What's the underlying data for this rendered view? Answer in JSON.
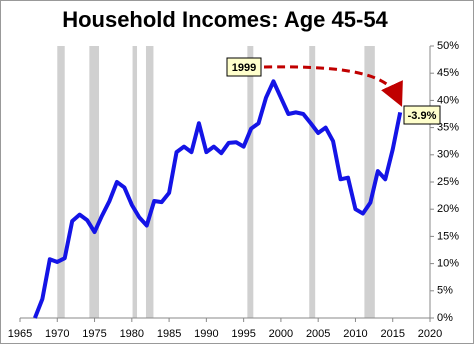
{
  "chart_data": {
    "type": "line",
    "title": "Household Incomes: Age 45-54",
    "x": [
      1967,
      1968,
      1969,
      1970,
      1971,
      1972,
      1973,
      1974,
      1975,
      1976,
      1977,
      1978,
      1979,
      1980,
      1981,
      1982,
      1983,
      1984,
      1985,
      1986,
      1987,
      1988,
      1989,
      1990,
      1991,
      1992,
      1993,
      1994,
      1995,
      1996,
      1997,
      1998,
      1999,
      2000,
      2001,
      2002,
      2003,
      2004,
      2005,
      2006,
      2007,
      2008,
      2009,
      2010,
      2011,
      2012,
      2013,
      2014,
      2015,
      2016
    ],
    "series": [
      {
        "color": "#1414e6",
        "values": [
          0,
          3.5,
          10.8,
          10.3,
          11,
          17.8,
          19,
          18,
          15.8,
          18.8,
          21.5,
          25,
          24,
          20.8,
          18.5,
          17,
          21.5,
          21.3,
          23,
          30.5,
          31.5,
          30.5,
          35.8,
          30.5,
          31.5,
          30.3,
          32.2,
          32.3,
          31.5,
          34.8,
          35.8,
          40.5,
          43.5,
          40.5,
          37.5,
          37.8,
          37.5,
          35.8,
          34,
          35,
          32.5,
          25.5,
          25.8,
          20,
          19.2,
          21.2,
          27,
          25.5,
          31,
          37.8
        ]
      }
    ],
    "shaded_ranges": [
      [
        1970,
        1971
      ],
      [
        1974.3,
        1975.6
      ],
      [
        1980.1,
        1980.7
      ],
      [
        1981.9,
        1982.9
      ],
      [
        1995.5,
        1996.3
      ],
      [
        2003.8,
        2004.6
      ],
      [
        2011.2,
        2012.6
      ]
    ],
    "shade_color": "#d0d0d0",
    "xlim": [
      1965,
      2020
    ],
    "xticks": [
      1965,
      1970,
      1975,
      1980,
      1985,
      1990,
      1995,
      2000,
      2005,
      2010,
      2015,
      2020
    ],
    "ylim": [
      0,
      50
    ],
    "yticks": [
      {
        "value": 0,
        "label": "0%"
      },
      {
        "value": 5,
        "label": "5%"
      },
      {
        "value": 10,
        "label": "10%"
      },
      {
        "value": 15,
        "label": "15%"
      },
      {
        "value": 20,
        "label": "20%"
      },
      {
        "value": 25,
        "label": "25%"
      },
      {
        "value": 30,
        "label": "30%"
      },
      {
        "value": 35,
        "label": "35%"
      },
      {
        "value": 40,
        "label": "40%"
      },
      {
        "value": 45,
        "label": "45%"
      },
      {
        "value": 50,
        "label": "50%"
      }
    ],
    "annotations": [
      "1999",
      "-3.9%"
    ]
  }
}
